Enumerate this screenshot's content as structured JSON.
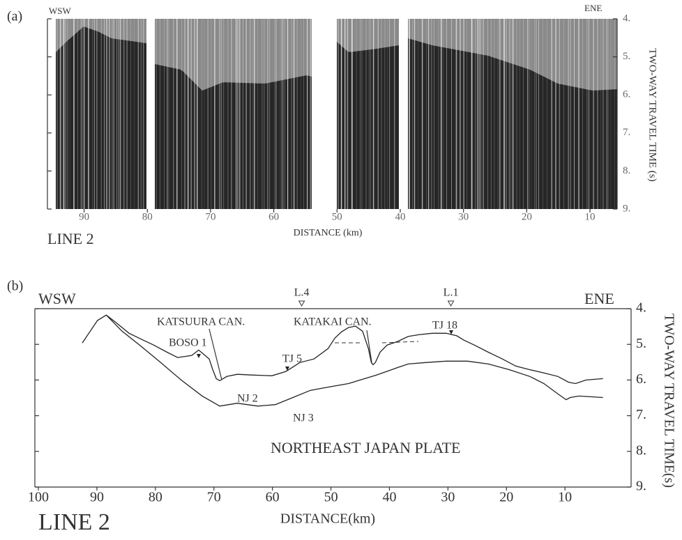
{
  "chart_data": [
    {
      "type": "seismic",
      "panel_label": "(a)",
      "left_label": "WSW",
      "right_label": "ENE",
      "line_label": "LINE 2",
      "xlabel": "DISTANCE (km)",
      "ylabel": "TWO-WAY TRAVEL TIME (s)",
      "xlim": [
        95.8,
        5.7
      ],
      "xticks": [
        90,
        80,
        70,
        60,
        50,
        40,
        30,
        20,
        10
      ],
      "ylim": [
        4,
        9
      ],
      "yticks": [
        {
          "value": 4,
          "label": "4."
        },
        {
          "value": 5,
          "label": "5."
        },
        {
          "value": 6,
          "label": "6."
        },
        {
          "value": 7,
          "label": "7."
        },
        {
          "value": 8,
          "label": "8."
        },
        {
          "value": 9,
          "label": "9."
        }
      ],
      "grid": false
    },
    {
      "type": "line",
      "panel_label": "(b)",
      "left_label": "WSW",
      "right_label": "ENE",
      "line_label": "LINE 2",
      "xlabel": "DISTANCE(km)",
      "ylabel": "TWO-WAY TRAVEL TIME(s)",
      "xlim": [
        100.6,
        -1.3
      ],
      "xticks": [
        100,
        90,
        80,
        70,
        60,
        50,
        40,
        30,
        20,
        10
      ],
      "ylim": [
        4,
        9
      ],
      "yticks": [
        {
          "value": 4,
          "label": "4."
        },
        {
          "value": 5,
          "label": "5."
        },
        {
          "value": 6,
          "label": "6."
        },
        {
          "value": 7,
          "label": "7."
        },
        {
          "value": 8,
          "label": "8."
        },
        {
          "value": 9,
          "label": "9."
        }
      ],
      "grid": false,
      "line_markers": [
        "L.4",
        "L.1"
      ],
      "annotations": [
        "KATSUURA CAN.",
        "BOSO 1",
        "TJ 5",
        "KATAKAI CAN.",
        "TJ 18",
        "NJ 2",
        "NJ 3",
        "NORTHEAST JAPAN PLATE"
      ],
      "series": [
        {
          "color": "#222",
          "x": [
            92.5,
            89.9,
            88.4,
            86.9,
            84.5,
            82.1,
            80.3,
            78.0,
            76.2,
            73.8,
            72.6,
            71.8,
            70.8,
            70.2,
            69.6,
            69.0,
            67.8,
            66.0,
            63.6,
            60.1,
            57.7,
            55.3,
            52.9,
            50.5,
            49.3,
            48.2,
            47.0,
            45.8,
            44.6,
            43.6,
            43.1,
            42.8,
            42.4,
            41.6,
            40.4,
            38.6,
            36.8,
            35.0,
            32.7,
            30.3,
            28.5,
            27.3,
            25.5,
            23.1,
            20.7,
            18.4,
            16.0,
            13.6,
            11.2,
            9.4,
            8.2,
            6.4,
            3.5
          ],
          "values": [
            4.96,
            4.33,
            4.18,
            4.37,
            4.69,
            4.88,
            5.02,
            5.22,
            5.37,
            5.31,
            5.16,
            5.27,
            5.41,
            5.71,
            5.96,
            6.02,
            5.9,
            5.84,
            5.86,
            5.88,
            5.76,
            5.51,
            5.41,
            5.12,
            4.82,
            4.65,
            4.53,
            4.49,
            4.63,
            5.12,
            5.51,
            5.57,
            5.51,
            5.22,
            5.02,
            4.92,
            4.78,
            4.73,
            4.69,
            4.69,
            4.76,
            4.88,
            5.02,
            5.22,
            5.41,
            5.61,
            5.71,
            5.8,
            5.9,
            6.06,
            6.1,
            6.0,
            5.96
          ]
        },
        {
          "color": "#222",
          "x": [
            88.4,
            85.7,
            82.7,
            79.1,
            75.6,
            72.0,
            69.0,
            66.0,
            62.5,
            59.5,
            56.5,
            53.5,
            50.5,
            47.0,
            42.2,
            38.6,
            36.8,
            33.8,
            30.3,
            26.7,
            23.1,
            19.5,
            16.0,
            13.6,
            11.2,
            9.8,
            9.1,
            7.6,
            3.5
          ],
          "values": [
            4.18,
            4.63,
            5.02,
            5.51,
            6.0,
            6.45,
            6.73,
            6.65,
            6.73,
            6.69,
            6.49,
            6.29,
            6.2,
            6.1,
            5.86,
            5.65,
            5.55,
            5.51,
            5.47,
            5.47,
            5.55,
            5.71,
            5.9,
            6.1,
            6.39,
            6.55,
            6.49,
            6.45,
            6.49
          ]
        }
      ]
    }
  ]
}
